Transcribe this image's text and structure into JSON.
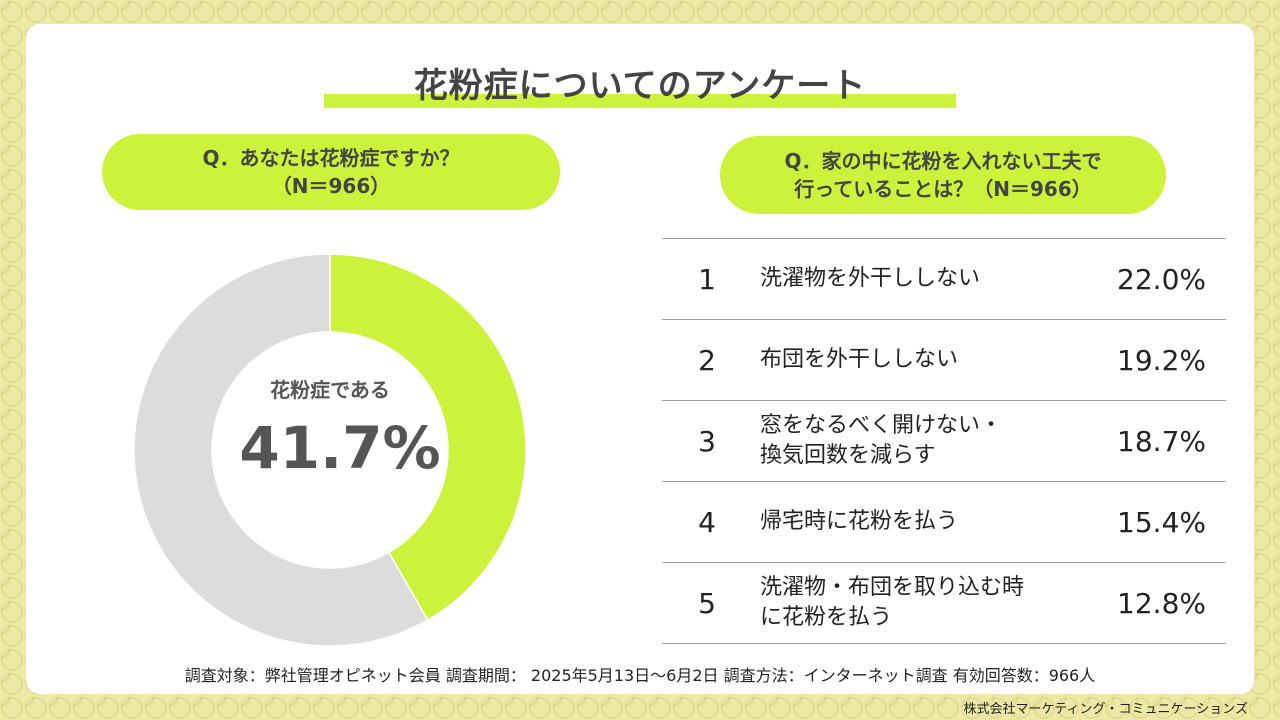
{
  "title": "花粉症についてのアンケート",
  "left_question": {
    "line1": "Q．あなたは花粉症ですか？",
    "line2": "（N＝966）"
  },
  "right_question": {
    "line1": "Q．家の中に花粉を入れない工夫で",
    "line2": "行っていることは？（N＝966）"
  },
  "donut_center": {
    "label": "花粉症である",
    "value": "41.7%"
  },
  "colors": {
    "accent": "#cdf23c",
    "remainder": "#dcdcdc"
  },
  "ranking": [
    {
      "rank": "1",
      "line1": "洗濯物を外干ししない",
      "line2": "",
      "pct": "22.0%"
    },
    {
      "rank": "2",
      "line1": "布団を外干ししない",
      "line2": "",
      "pct": "19.2%"
    },
    {
      "rank": "3",
      "line1": "窓をなるべく開けない・",
      "line2": "換気回数を減らす",
      "pct": "18.7%"
    },
    {
      "rank": "4",
      "line1": "帰宅時に花粉を払う",
      "line2": "",
      "pct": "15.4%"
    },
    {
      "rank": "5",
      "line1": "洗濯物・布団を取り込む時",
      "line2": "に花粉を払う",
      "pct": "12.8%"
    }
  ],
  "footnote": "調査対象：弊社管理オピネット会員  調査期間：  2025年5月13日～6月2日  調査方法：インターネット調査  有効回答数：966人",
  "company": "株式会社マーケティング・コミュニケーションズ",
  "chart_data": [
    {
      "type": "pie",
      "categories": [
        "花粉症である",
        ""
      ],
      "values": [
        41.7,
        58.3
      ],
      "donut": true
    },
    {
      "type": "table",
      "columns": [
        "rank",
        "item",
        "percent"
      ],
      "rows": [
        [
          "1",
          "洗濯物を外干ししない",
          22.0
        ],
        [
          "2",
          "布団を外干ししない",
          19.2
        ],
        [
          "3",
          "窓をなるべく開けない・換気回数を減らす",
          18.7
        ],
        [
          "4",
          "帰宅時に花粉を払う",
          15.4
        ],
        [
          "5",
          "洗濯物・布団を取り込む時に花粉を払う",
          12.8
        ]
      ]
    }
  ]
}
